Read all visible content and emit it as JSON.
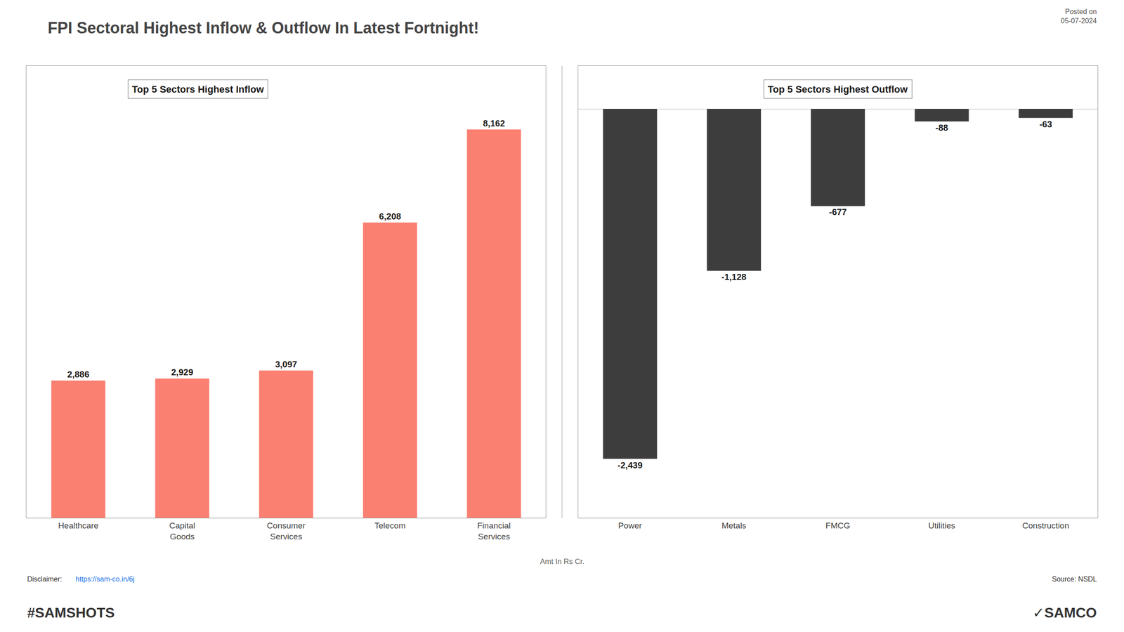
{
  "title": "FPI Sectoral Highest Inflow & Outflow In Latest Fortnight!",
  "subtitle": "Amt In Rs Cr.",
  "annotations": [
    "Posted on\n05-07-2024",
    "Disclaimer: ",
    "https://sam-co.in/6j",
    "Source: NSDL",
    "#SAMSHOTS",
    "✓SAMCO"
  ],
  "chart_data": [
    {
      "type": "bar",
      "title": "Top 5 Sectors Highest Inflow",
      "categories": [
        "Healthcare",
        "Capital\nGoods",
        "Consumer\nServices",
        "Telecom",
        "Financial\nServices"
      ],
      "values": [
        2886,
        2929,
        3097,
        6208,
        8162
      ],
      "value_labels": [
        "2,886",
        "2,929",
        "3,097",
        "6,208",
        "8,162"
      ],
      "data_labels": true,
      "color": "#FA8072",
      "ylim": [
        0,
        9500
      ],
      "tick_labels": "x",
      "grid": false
    },
    {
      "type": "bar",
      "title": "Top 5 Sectors Highest Outflow",
      "categories": [
        "Power",
        "Metals",
        "FMCG",
        "Utilities",
        "Construction"
      ],
      "values": [
        -2439,
        -1128,
        -677,
        -88,
        -63
      ],
      "value_labels": [
        "-2,439",
        "-1,128",
        "-677",
        "-88",
        "-63"
      ],
      "data_labels": true,
      "color": "#3d3d3d",
      "ylim": [
        -2850,
        300
      ],
      "tick_labels": "x",
      "grid": false
    }
  ]
}
